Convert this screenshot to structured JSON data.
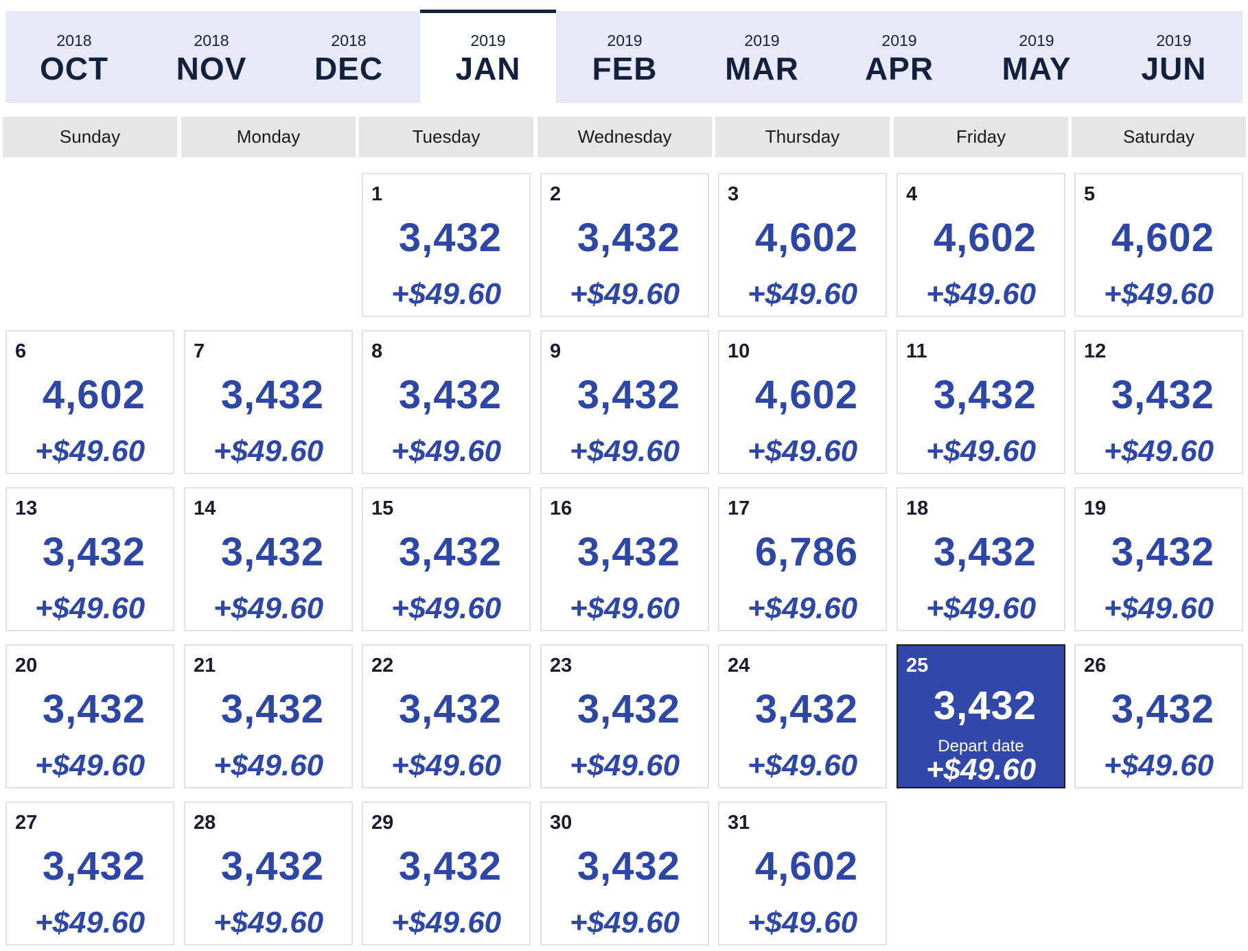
{
  "colors": {
    "accent": "#2e47a4",
    "selected_bg": "#3248a8",
    "month_bar_bg": "#e7eaf6",
    "active_border": "#14213d",
    "weekday_header_bg": "#e6e6e6",
    "cell_border": "#e2e2e2"
  },
  "months": [
    {
      "year": "2018",
      "name": "OCT",
      "active": false
    },
    {
      "year": "2018",
      "name": "NOV",
      "active": false
    },
    {
      "year": "2018",
      "name": "DEC",
      "active": false
    },
    {
      "year": "2019",
      "name": "JAN",
      "active": true
    },
    {
      "year": "2019",
      "name": "FEB",
      "active": false
    },
    {
      "year": "2019",
      "name": "MAR",
      "active": false
    },
    {
      "year": "2019",
      "name": "APR",
      "active": false
    },
    {
      "year": "2019",
      "name": "MAY",
      "active": false
    },
    {
      "year": "2019",
      "name": "JUN",
      "active": false
    }
  ],
  "weekdays": [
    "Sunday",
    "Monday",
    "Tuesday",
    "Wednesday",
    "Thursday",
    "Friday",
    "Saturday"
  ],
  "calendar": {
    "first_weekday_index": 2,
    "depart_label": "Depart date",
    "selected_day": 25,
    "days": [
      {
        "day": "1",
        "points": "3,432",
        "fee": "+$49.60"
      },
      {
        "day": "2",
        "points": "3,432",
        "fee": "+$49.60"
      },
      {
        "day": "3",
        "points": "4,602",
        "fee": "+$49.60"
      },
      {
        "day": "4",
        "points": "4,602",
        "fee": "+$49.60"
      },
      {
        "day": "5",
        "points": "4,602",
        "fee": "+$49.60"
      },
      {
        "day": "6",
        "points": "4,602",
        "fee": "+$49.60"
      },
      {
        "day": "7",
        "points": "3,432",
        "fee": "+$49.60"
      },
      {
        "day": "8",
        "points": "3,432",
        "fee": "+$49.60"
      },
      {
        "day": "9",
        "points": "3,432",
        "fee": "+$49.60"
      },
      {
        "day": "10",
        "points": "4,602",
        "fee": "+$49.60"
      },
      {
        "day": "11",
        "points": "3,432",
        "fee": "+$49.60"
      },
      {
        "day": "12",
        "points": "3,432",
        "fee": "+$49.60"
      },
      {
        "day": "13",
        "points": "3,432",
        "fee": "+$49.60"
      },
      {
        "day": "14",
        "points": "3,432",
        "fee": "+$49.60"
      },
      {
        "day": "15",
        "points": "3,432",
        "fee": "+$49.60"
      },
      {
        "day": "16",
        "points": "3,432",
        "fee": "+$49.60"
      },
      {
        "day": "17",
        "points": "6,786",
        "fee": "+$49.60"
      },
      {
        "day": "18",
        "points": "3,432",
        "fee": "+$49.60"
      },
      {
        "day": "19",
        "points": "3,432",
        "fee": "+$49.60"
      },
      {
        "day": "20",
        "points": "3,432",
        "fee": "+$49.60"
      },
      {
        "day": "21",
        "points": "3,432",
        "fee": "+$49.60"
      },
      {
        "day": "22",
        "points": "3,432",
        "fee": "+$49.60"
      },
      {
        "day": "23",
        "points": "3,432",
        "fee": "+$49.60"
      },
      {
        "day": "24",
        "points": "3,432",
        "fee": "+$49.60"
      },
      {
        "day": "25",
        "points": "3,432",
        "fee": "+$49.60"
      },
      {
        "day": "26",
        "points": "3,432",
        "fee": "+$49.60"
      },
      {
        "day": "27",
        "points": "3,432",
        "fee": "+$49.60"
      },
      {
        "day": "28",
        "points": "3,432",
        "fee": "+$49.60"
      },
      {
        "day": "29",
        "points": "3,432",
        "fee": "+$49.60"
      },
      {
        "day": "30",
        "points": "3,432",
        "fee": "+$49.60"
      },
      {
        "day": "31",
        "points": "4,602",
        "fee": "+$49.60"
      }
    ]
  }
}
